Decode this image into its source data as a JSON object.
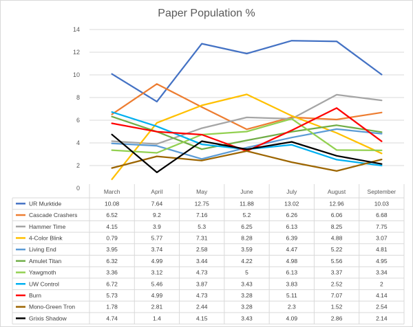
{
  "chart_data": {
    "type": "line",
    "title": "Paper Population %",
    "xlabel": "",
    "ylabel": "",
    "ylim": [
      0,
      14
    ],
    "yticks": [
      0,
      2,
      4,
      6,
      8,
      10,
      12,
      14
    ],
    "grid": true,
    "legend": "data-table-below",
    "categories": [
      "March",
      "April",
      "May",
      "June",
      "July",
      "August",
      "September"
    ],
    "series": [
      {
        "name": "UR Murktide",
        "color": "#4472c4",
        "values": [
          10.08,
          7.64,
          12.75,
          11.88,
          13.02,
          12.96,
          10.03
        ]
      },
      {
        "name": "Cascade Crashers",
        "color": "#ed7d31",
        "values": [
          6.52,
          9.2,
          7.16,
          5.2,
          6.26,
          6.06,
          6.68
        ]
      },
      {
        "name": "Hammer Time",
        "color": "#a5a5a5",
        "values": [
          4.15,
          3.9,
          5.3,
          6.25,
          6.13,
          8.25,
          7.75
        ]
      },
      {
        "name": "4-Color Blink",
        "color": "#ffc000",
        "values": [
          0.79,
          5.77,
          7.31,
          8.28,
          6.39,
          4.88,
          3.07
        ]
      },
      {
        "name": "Living End",
        "color": "#5b9bd5",
        "values": [
          3.95,
          3.74,
          2.58,
          3.59,
          4.47,
          5.22,
          4.81
        ]
      },
      {
        "name": "Amulet Titan",
        "color": "#70ad47",
        "values": [
          6.32,
          4.99,
          3.44,
          4.22,
          4.98,
          5.56,
          4.95
        ]
      },
      {
        "name": "Yawgmoth",
        "color": "#92d050",
        "values": [
          3.36,
          3.12,
          4.73,
          5,
          6.13,
          3.37,
          3.34
        ]
      },
      {
        "name": "UW Control",
        "color": "#00b0f0",
        "values": [
          6.72,
          5.46,
          3.87,
          3.43,
          3.83,
          2.52,
          2
        ]
      },
      {
        "name": "Burn",
        "color": "#ff0000",
        "values": [
          5.73,
          4.99,
          4.73,
          3.28,
          5.11,
          7.07,
          4.14
        ]
      },
      {
        "name": "Mono-Green Tron",
        "color": "#9c6500",
        "values": [
          1.78,
          2.81,
          2.44,
          3.28,
          2.3,
          1.52,
          2.54
        ]
      },
      {
        "name": "Grixis Shadow",
        "color": "#000000",
        "values": [
          4.74,
          1.4,
          4.15,
          3.43,
          4.09,
          2.86,
          2.14
        ]
      }
    ]
  }
}
